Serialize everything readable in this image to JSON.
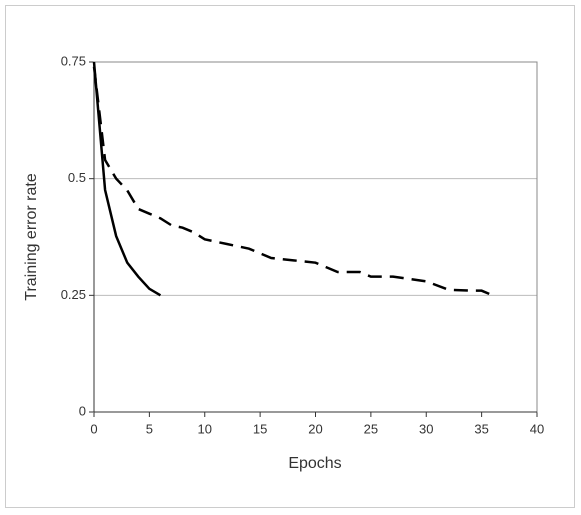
{
  "chart_data": {
    "type": "line",
    "x_label": "Epochs",
    "y_label": "Training error rate",
    "xlim": [
      0,
      40
    ],
    "xticks": [
      0,
      5,
      10,
      15,
      20,
      25,
      30,
      35,
      40
    ],
    "ylim": [
      0,
      0.75
    ],
    "yticks": [
      0,
      0.25,
      0.5,
      0.75
    ],
    "grid": true,
    "series": [
      {
        "color": "#000000",
        "dash": "solid",
        "x": [
          0,
          1,
          2,
          3,
          4,
          5,
          6
        ],
        "values": [
          0.75,
          0.476,
          0.377,
          0.32,
          0.29,
          0.264,
          0.25
        ]
      },
      {
        "color": "#000000",
        "dash": "dashed",
        "x": [
          0,
          1,
          2,
          3,
          4,
          5,
          6,
          7,
          8,
          9,
          10,
          12,
          14,
          16,
          18,
          20,
          22,
          24,
          25,
          27,
          30,
          32,
          34,
          35,
          36
        ],
        "values": [
          0.74,
          0.54,
          0.5,
          0.475,
          0.435,
          0.425,
          0.415,
          0.4,
          0.395,
          0.385,
          0.37,
          0.36,
          0.35,
          0.33,
          0.325,
          0.32,
          0.3,
          0.3,
          0.29,
          0.29,
          0.28,
          0.262,
          0.26,
          0.26,
          0.25
        ]
      }
    ]
  }
}
